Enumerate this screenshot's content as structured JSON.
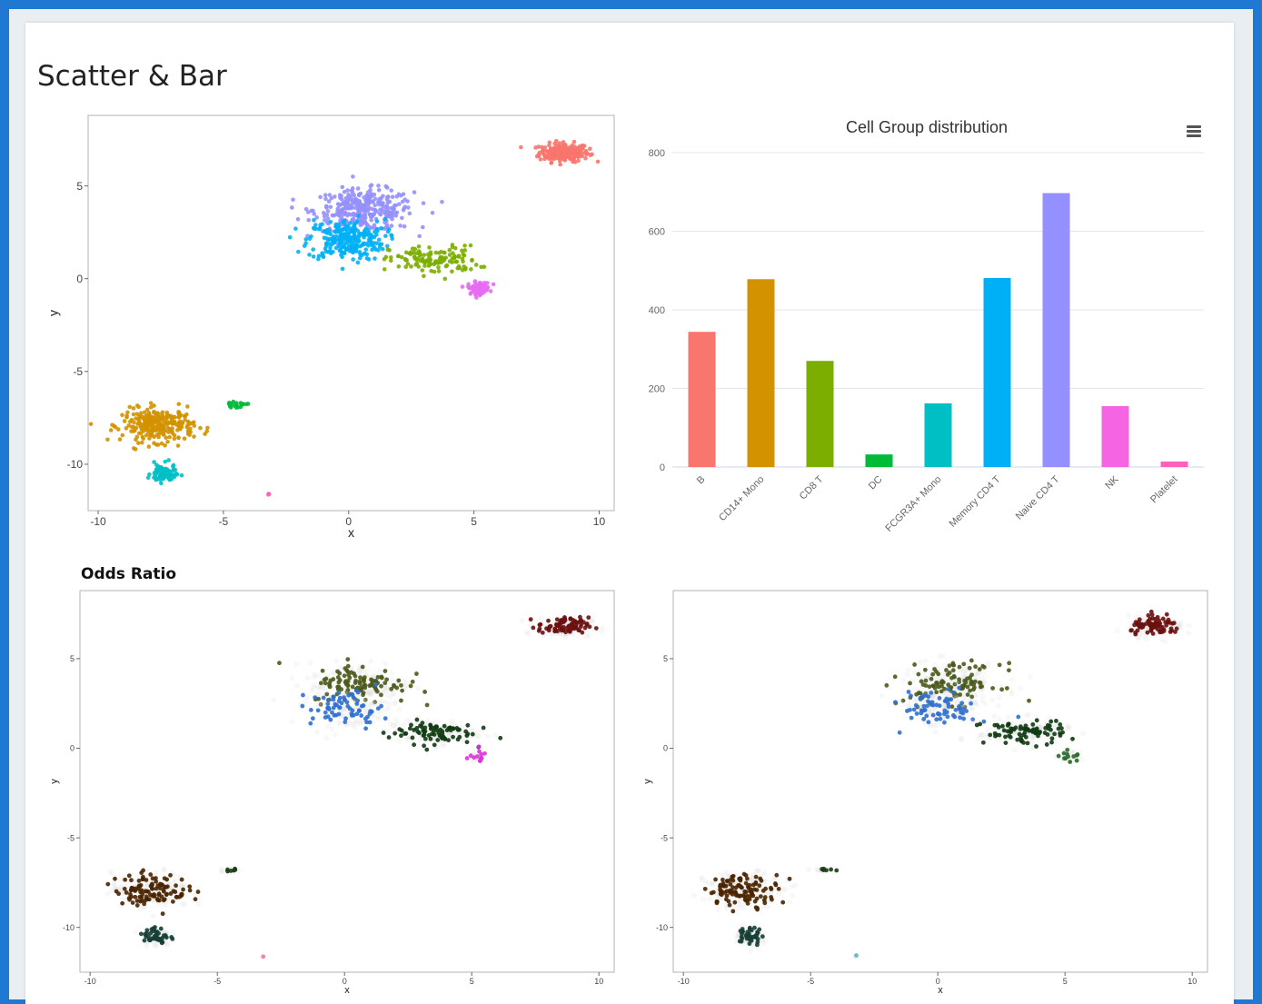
{
  "page": {
    "title": "Scatter & Bar",
    "subtitle": "Odds Ratio"
  },
  "chart_data": [
    {
      "type": "scatter",
      "xlabel": "x",
      "ylabel": "y",
      "xlim": [
        -10.4,
        10.6
      ],
      "ylim": [
        -12.5,
        8.8
      ],
      "xticks": [
        -10,
        -5,
        0,
        5,
        10
      ],
      "yticks": [
        -10,
        -5,
        0,
        5
      ],
      "grid": false,
      "legend": "none",
      "clusters": [
        {
          "group": "B",
          "color": "#F8766D",
          "center": [
            8.6,
            6.8
          ],
          "spread": [
            0.9,
            0.45
          ],
          "n": 220
        },
        {
          "group": "Naive CD4 T",
          "color": "#9590FF",
          "center": [
            0.6,
            3.7
          ],
          "spread": [
            1.8,
            1.0
          ],
          "n": 320
        },
        {
          "group": "Memory CD4 T",
          "color": "#00B0F6",
          "center": [
            -0.1,
            2.1
          ],
          "spread": [
            1.4,
            1.0
          ],
          "n": 260
        },
        {
          "group": "CD8 T",
          "color": "#7CAE00",
          "center": [
            3.4,
            1.0
          ],
          "spread": [
            1.6,
            0.7
          ],
          "n": 130
        },
        {
          "group": "NK",
          "color": "#E76BF3",
          "center": [
            5.2,
            -0.5
          ],
          "spread": [
            0.4,
            0.3
          ],
          "n": 80
        },
        {
          "group": "CD14+ Mono",
          "color": "#D39200",
          "center": [
            -7.6,
            -7.9
          ],
          "spread": [
            1.3,
            0.8
          ],
          "n": 280
        },
        {
          "group": "FCGR3A+ Mono",
          "color": "#00BFC4",
          "center": [
            -7.4,
            -10.5
          ],
          "spread": [
            0.45,
            0.45
          ],
          "n": 90
        },
        {
          "group": "DC",
          "color": "#00BA38",
          "center": [
            -4.5,
            -6.8
          ],
          "spread": [
            0.4,
            0.12
          ],
          "n": 20
        },
        {
          "group": "Platelet",
          "color": "#FF62BC",
          "center": [
            -3.2,
            -11.6
          ],
          "spread": [
            0.08,
            0.05
          ],
          "n": 4
        }
      ]
    },
    {
      "type": "bar",
      "title": "Cell Group distribution",
      "categories": [
        "B",
        "CD14+ Mono",
        "CD8 T",
        "DC",
        "FCGR3A+ Mono",
        "Memory CD4 T",
        "Naive CD4 T",
        "NK",
        "Platelet"
      ],
      "values": [
        344,
        478,
        270,
        32,
        162,
        481,
        697,
        155,
        14
      ],
      "colors": [
        "#F8766D",
        "#D39200",
        "#7CAE00",
        "#00BA38",
        "#00BFC4",
        "#00B0F6",
        "#9590FF",
        "#F564E3",
        "#FF62BC"
      ],
      "ylim": [
        0,
        800
      ],
      "yticks": [
        0,
        200,
        400,
        600,
        800
      ],
      "xlabel": "",
      "ylabel": "",
      "grid": true,
      "legend": "none"
    },
    {
      "type": "scatter",
      "xlabel": "x",
      "ylabel": "y",
      "xlim": [
        -10.4,
        10.6
      ],
      "ylim": [
        -12.5,
        8.8
      ],
      "xticks": [
        -10,
        -5,
        0,
        5,
        10
      ],
      "yticks": [
        -10,
        -5,
        0,
        5
      ],
      "grid": false,
      "legend": "none",
      "clusters": [
        {
          "center": [
            8.6,
            6.8
          ],
          "spread": [
            0.9,
            0.45
          ],
          "n": 80,
          "color": "#6b0f0f"
        },
        {
          "center": [
            0.6,
            3.6
          ],
          "spread": [
            1.7,
            1.0
          ],
          "n": 110,
          "color": "#4a5a1c"
        },
        {
          "center": [
            0.1,
            2.2
          ],
          "spread": [
            1.3,
            0.9
          ],
          "n": 70,
          "color": "#2f6fd0"
        },
        {
          "center": [
            3.4,
            0.9
          ],
          "spread": [
            1.5,
            0.6
          ],
          "n": 80,
          "color": "#0f3a12"
        },
        {
          "center": [
            5.2,
            -0.5
          ],
          "spread": [
            0.4,
            0.3
          ],
          "n": 12,
          "color": "#dd33dd"
        },
        {
          "center": [
            -7.6,
            -7.9
          ],
          "spread": [
            1.3,
            0.8
          ],
          "n": 110,
          "color": "#4a2400"
        },
        {
          "center": [
            -7.4,
            -10.5
          ],
          "spread": [
            0.45,
            0.45
          ],
          "n": 40,
          "color": "#163e35"
        },
        {
          "center": [
            -4.5,
            -6.8
          ],
          "spread": [
            0.4,
            0.12
          ],
          "n": 6,
          "color": "#183c14"
        },
        {
          "center": [
            -3.2,
            -11.6
          ],
          "spread": [
            0.05,
            0.05
          ],
          "n": 1,
          "color": "#f07aa8"
        }
      ]
    },
    {
      "type": "scatter",
      "xlabel": "x",
      "ylabel": "y",
      "xlim": [
        -10.4,
        10.6
      ],
      "ylim": [
        -12.5,
        8.8
      ],
      "xticks": [
        -10,
        -5,
        0,
        5,
        10
      ],
      "yticks": [
        -10,
        -5,
        0,
        5
      ],
      "grid": false,
      "legend": "none",
      "clusters": [
        {
          "center": [
            8.6,
            6.8
          ],
          "spread": [
            0.9,
            0.45
          ],
          "n": 80,
          "color": "#6b0f0f"
        },
        {
          "center": [
            0.6,
            3.6
          ],
          "spread": [
            1.7,
            1.0
          ],
          "n": 110,
          "color": "#4a5a1c"
        },
        {
          "center": [
            0.1,
            2.2
          ],
          "spread": [
            1.3,
            0.9
          ],
          "n": 70,
          "color": "#2f6fd0"
        },
        {
          "center": [
            3.4,
            0.9
          ],
          "spread": [
            1.5,
            0.6
          ],
          "n": 80,
          "color": "#0f3a12"
        },
        {
          "center": [
            5.2,
            -0.5
          ],
          "spread": [
            0.4,
            0.3
          ],
          "n": 12,
          "color": "#2a6a2a"
        },
        {
          "center": [
            -7.6,
            -7.9
          ],
          "spread": [
            1.3,
            0.8
          ],
          "n": 110,
          "color": "#4a2400"
        },
        {
          "center": [
            -7.4,
            -10.5
          ],
          "spread": [
            0.45,
            0.45
          ],
          "n": 40,
          "color": "#163e35"
        },
        {
          "center": [
            -4.5,
            -6.8
          ],
          "spread": [
            0.4,
            0.12
          ],
          "n": 6,
          "color": "#183c14"
        },
        {
          "center": [
            -3.2,
            -11.6
          ],
          "spread": [
            0.05,
            0.05
          ],
          "n": 1,
          "color": "#5ab4c8"
        }
      ]
    }
  ]
}
